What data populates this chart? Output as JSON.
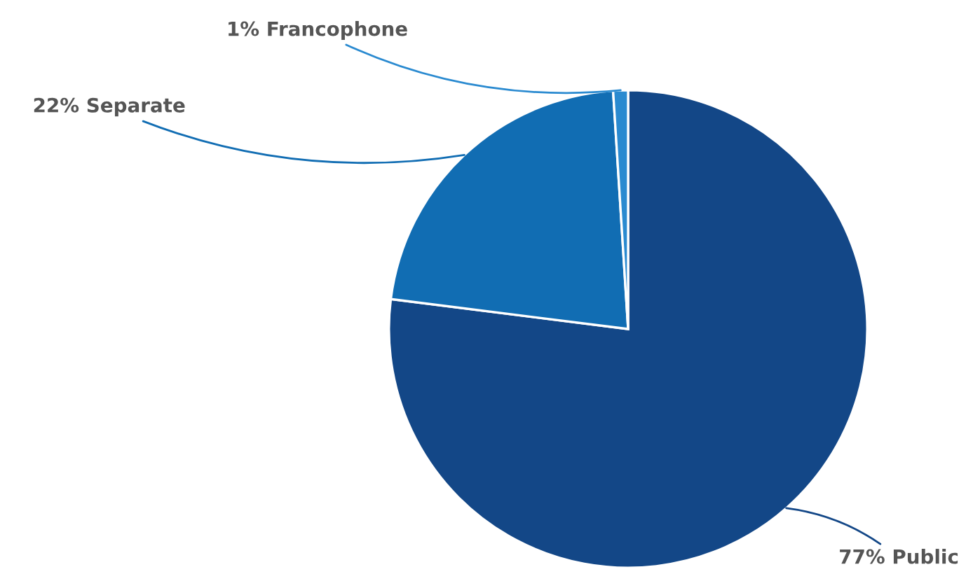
{
  "chart_data": {
    "type": "pie",
    "categories": [
      "Public",
      "Separate",
      "Francophone"
    ],
    "values": [
      77,
      22,
      1
    ],
    "value_labels": [
      "77%",
      "22%",
      "1%"
    ],
    "colors": [
      "#134787",
      "#116db3",
      "#2a8ad0"
    ],
    "legend": false
  }
}
